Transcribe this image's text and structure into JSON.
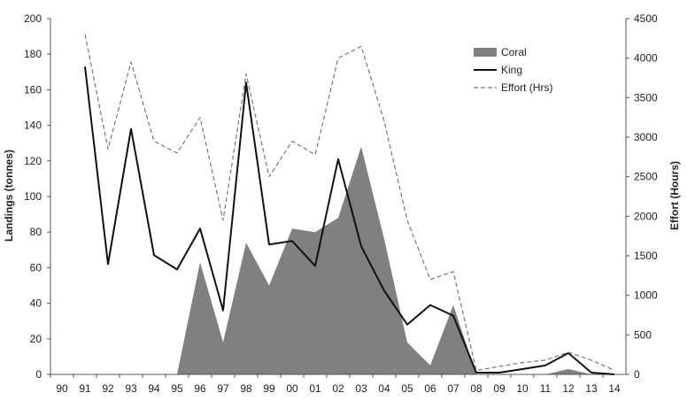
{
  "chart_data": {
    "type": "line",
    "categories": [
      "90",
      "91",
      "92",
      "93",
      "94",
      "95",
      "96",
      "97",
      "98",
      "99",
      "00",
      "01",
      "02",
      "03",
      "04",
      "05",
      "06",
      "07",
      "08",
      "09",
      "10",
      "11",
      "12",
      "13",
      "14"
    ],
    "series": [
      {
        "name": "Coral",
        "kind": "area",
        "axis": "left",
        "color": "#808080",
        "values": [
          0,
          0,
          0,
          0,
          0,
          0,
          63,
          18,
          74,
          50,
          82,
          80,
          88,
          128,
          76,
          18,
          5,
          39,
          0,
          0,
          0,
          0,
          3,
          0,
          0
        ]
      },
      {
        "name": "King",
        "kind": "line",
        "axis": "left",
        "color": "#111111",
        "values": [
          null,
          173,
          62,
          138,
          67,
          59,
          82,
          36,
          164,
          73,
          75,
          61,
          121,
          72,
          47,
          28,
          39,
          33,
          1,
          1,
          3,
          5,
          12,
          1,
          0
        ]
      },
      {
        "name": "Effort (Hrs)",
        "kind": "line",
        "dash": true,
        "axis": "right",
        "color": "#777777",
        "values": [
          null,
          4300,
          2850,
          3950,
          2950,
          2800,
          3250,
          1950,
          3800,
          2500,
          2950,
          2780,
          4000,
          4150,
          3200,
          1950,
          1200,
          1300,
          50,
          100,
          150,
          180,
          280,
          180,
          50
        ]
      }
    ],
    "y_left": {
      "label": "Landings (tonnes)",
      "min": 0,
      "max": 200,
      "ticks": [
        0,
        20,
        40,
        60,
        80,
        100,
        120,
        140,
        160,
        180,
        200
      ]
    },
    "y_right": {
      "label": "Effort (Hours)",
      "min": 0,
      "max": 4500,
      "ticks": [
        0,
        500,
        1000,
        1500,
        2000,
        2500,
        3000,
        3500,
        4000,
        4500
      ]
    },
    "legend_position": "top-right",
    "grid": false
  }
}
